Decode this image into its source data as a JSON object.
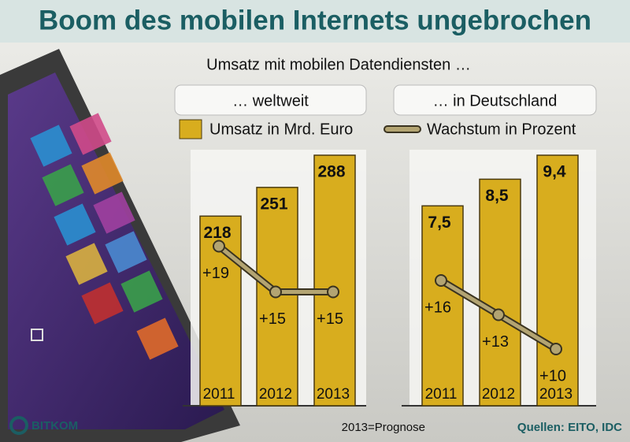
{
  "title": "Boom des mobilen Internets ungebrochen",
  "subtitle": "Umsatz mit mobilen Datendiensten …",
  "footnote": "2013=Prognose",
  "source": "Quellen: EITO, IDC",
  "logo": "BITKOM",
  "chart_data": [
    {
      "type": "bar",
      "title": "… weltweit",
      "categories": [
        "2011",
        "2012",
        "2013"
      ],
      "series": [
        {
          "name": "Umsatz in Mrd. Euro",
          "color": "#d8ad1e",
          "values": [
            218,
            251,
            288
          ]
        },
        {
          "name": "Wachstum in Prozent",
          "color": "#b3a472",
          "values": [
            19,
            15,
            15
          ],
          "value_labels": [
            "+19",
            "+15",
            "+15"
          ]
        }
      ]
    },
    {
      "type": "bar",
      "title": "… in Deutschland",
      "categories": [
        "2011",
        "2012",
        "2013"
      ],
      "series": [
        {
          "color": "#d8ad1e",
          "values": [
            7.5,
            8.5,
            9.4
          ],
          "value_labels": [
            "7,5",
            "8,5",
            "9,4"
          ]
        },
        {
          "color": "#b3a472",
          "values": [
            16,
            13,
            10
          ],
          "value_labels": [
            "+16",
            "+13",
            "+10"
          ]
        }
      ]
    }
  ]
}
